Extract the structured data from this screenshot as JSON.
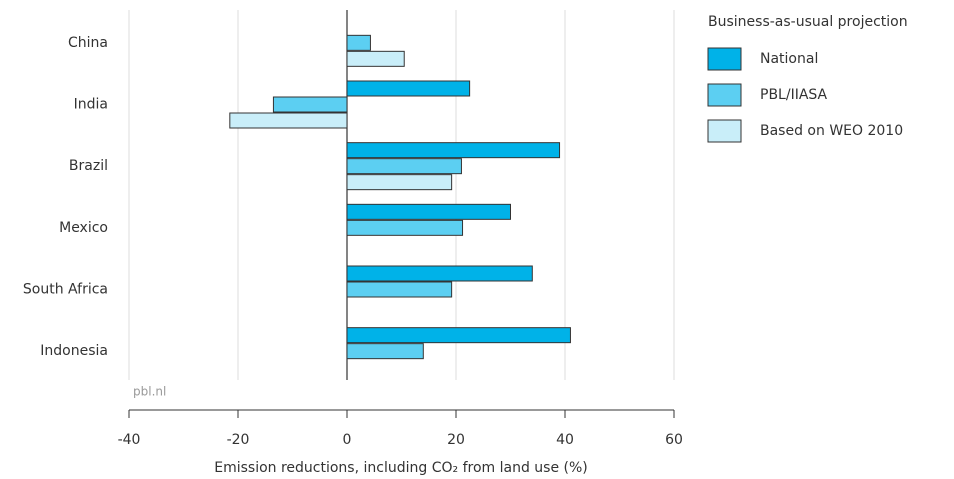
{
  "chart_data": {
    "type": "bar",
    "orientation": "horizontal",
    "x_label": "Emission reductions, including CO₂ from land use (%)",
    "source": "pbl.nl",
    "legend_title": "Business-as-usual projection",
    "categories": [
      "China",
      "India",
      "Brazil",
      "Mexico",
      "South Africa",
      "Indonesia"
    ],
    "series": [
      {
        "name": "National",
        "color": "#00b2e8",
        "values": [
          null,
          22.5,
          39,
          30,
          34,
          41
        ]
      },
      {
        "name": "PBL/IIASA",
        "color": "#5ccff2",
        "values": [
          4.3,
          -13.5,
          21,
          21.2,
          19.2,
          14
        ]
      },
      {
        "name": "Based on WEO 2010",
        "color": "#c9eef9",
        "values": [
          10.5,
          -21.5,
          19.2,
          null,
          null,
          null
        ]
      }
    ],
    "xlim": [
      -40,
      60
    ],
    "xticks": [
      -40,
      -20,
      0,
      20,
      40,
      60
    ],
    "grid": true
  }
}
